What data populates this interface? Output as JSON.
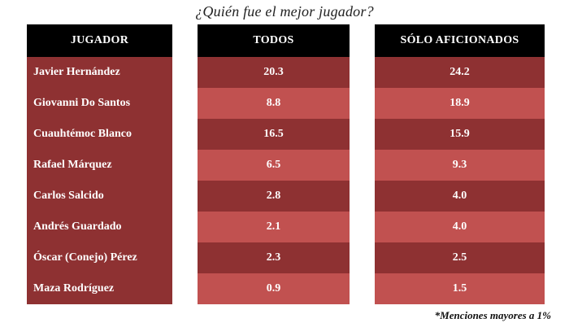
{
  "chart_data": {
    "type": "table",
    "title": "¿Quién fue el mejor jugador?",
    "columns": [
      "JUGADOR",
      "TODOS",
      "SÓLO AFICIONADOS"
    ],
    "rows": [
      {
        "jugador": "Javier Hernández",
        "todos": "20.3",
        "aficionados": "24.2"
      },
      {
        "jugador": "Giovanni Do Santos",
        "todos": "8.8",
        "aficionados": "18.9"
      },
      {
        "jugador": "Cuauhtémoc Blanco",
        "todos": "16.5",
        "aficionados": "15.9"
      },
      {
        "jugador": "Rafael Márquez",
        "todos": "6.5",
        "aficionados": "9.3"
      },
      {
        "jugador": "Carlos Salcido",
        "todos": "2.8",
        "aficionados": "4.0"
      },
      {
        "jugador": "Andrés Guardado",
        "todos": "2.1",
        "aficionados": "4.0"
      },
      {
        "jugador": "Óscar (Conejo) Pérez",
        "todos": "2.3",
        "aficionados": "2.5"
      },
      {
        "jugador": "Maza Rodríguez",
        "todos": "0.9",
        "aficionados": "1.5"
      }
    ],
    "footnote": "*Menciones mayores a 1%"
  },
  "colors": {
    "header_bg": "#000000",
    "row_dark": "#8e3132",
    "row_light": "#c15150",
    "text": "#ffffff"
  }
}
